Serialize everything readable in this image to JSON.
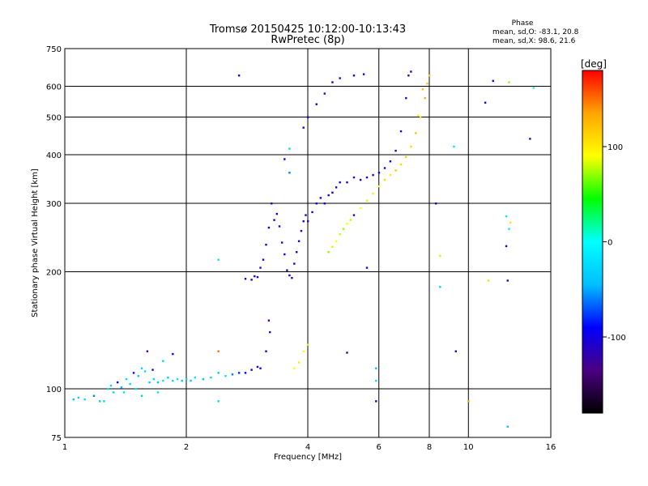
{
  "title_line1": "Tromsø 20150425 10:12:00-10:13:43",
  "title_line2": "RwPretec (8p)",
  "phase_box": {
    "heading": "Phase",
    "line_o": "mean, sd,O: -83.1, 20.8",
    "line_x": "mean, sd,X:  98.6, 21.6"
  },
  "colorbar": {
    "unit": "[deg]",
    "tick_labels": [
      "100",
      "0",
      "-100"
    ],
    "tick_values": [
      100,
      0,
      -100
    ],
    "range": [
      -180,
      180
    ],
    "colormap": [
      "#000000",
      "#4b0082",
      "#0000ff",
      "#00bfff",
      "#00ffff",
      "#00ff00",
      "#ffff00",
      "#ffa500",
      "#ff0000"
    ]
  },
  "chart_data": {
    "type": "scatter",
    "title": "Tromsø 20150425 10:12:00-10:13:43",
    "subtitle": "RwPretec (8p)",
    "xlabel": "Frequency [MHz]",
    "ylabel": "Stationary phase Virtual Height [km]",
    "x_scale": "log2",
    "y_scale": "log",
    "xlim": [
      1,
      16
    ],
    "ylim": [
      75,
      750
    ],
    "x_ticks": [
      1,
      2,
      4,
      6,
      8,
      10,
      16
    ],
    "x_tick_labels": [
      "1",
      "2",
      "4",
      "6",
      "8",
      "10",
      "16"
    ],
    "y_ticks": [
      75,
      100,
      200,
      300,
      400,
      500,
      600,
      750
    ],
    "y_tick_labels": [
      "75",
      "100",
      "200",
      "300",
      "400",
      "500",
      "600",
      "750"
    ],
    "grid": true,
    "color_encoding": "phase [deg]",
    "series": [
      {
        "points": [
          [
            1.05,
            94,
            -40
          ],
          [
            1.08,
            95,
            -30
          ],
          [
            1.12,
            94,
            -20
          ],
          [
            1.18,
            96,
            -60
          ],
          [
            1.22,
            93,
            -40
          ],
          [
            1.28,
            100,
            -20
          ],
          [
            1.32,
            98,
            -30
          ],
          [
            1.35,
            104,
            -100
          ],
          [
            1.38,
            101,
            -40
          ],
          [
            1.42,
            106,
            -20
          ],
          [
            1.45,
            103,
            -30
          ],
          [
            1.48,
            110,
            -100
          ],
          [
            1.52,
            108,
            -40
          ],
          [
            1.55,
            113,
            -30
          ],
          [
            1.58,
            111,
            -20
          ],
          [
            1.62,
            104,
            -40
          ],
          [
            1.66,
            106,
            -30
          ],
          [
            1.7,
            104,
            -40
          ],
          [
            1.75,
            105,
            -20
          ],
          [
            1.8,
            107,
            -40
          ],
          [
            1.85,
            105,
            -30
          ],
          [
            1.9,
            106,
            -20
          ],
          [
            1.95,
            105,
            -40
          ],
          [
            2.0,
            106,
            -30
          ],
          [
            2.05,
            105,
            -40
          ],
          [
            2.1,
            107,
            -20
          ],
          [
            2.2,
            106,
            -40
          ],
          [
            2.3,
            107,
            -30
          ],
          [
            2.4,
            110,
            -40
          ],
          [
            2.5,
            108,
            -20
          ],
          [
            2.6,
            109,
            -60
          ],
          [
            2.7,
            110,
            -80
          ],
          [
            2.8,
            110,
            -90
          ],
          [
            2.9,
            112,
            -100
          ],
          [
            3.0,
            114,
            -110
          ],
          [
            3.05,
            113,
            -100
          ],
          [
            3.15,
            125,
            -110
          ],
          [
            3.2,
            150,
            -120
          ],
          [
            3.22,
            140,
            -110
          ],
          [
            1.25,
            93,
            -30
          ],
          [
            1.4,
            98,
            -20
          ],
          [
            1.55,
            96,
            -40
          ],
          [
            1.6,
            125,
            -120
          ],
          [
            1.75,
            118,
            -30
          ],
          [
            1.5,
            100,
            -20
          ],
          [
            1.65,
            112,
            -100
          ],
          [
            1.3,
            102,
            -30
          ],
          [
            1.7,
            98,
            -20
          ],
          [
            1.85,
            123,
            -100
          ]
        ]
      },
      {
        "points": [
          [
            2.8,
            192,
            -110
          ],
          [
            2.9,
            191,
            -100
          ],
          [
            2.95,
            195,
            -110
          ],
          [
            3.0,
            194,
            -100
          ],
          [
            3.05,
            205,
            -110
          ],
          [
            3.1,
            215,
            -100
          ],
          [
            3.15,
            235,
            -110
          ],
          [
            3.2,
            260,
            -100
          ],
          [
            3.25,
            300,
            -110
          ],
          [
            3.3,
            272,
            -100
          ],
          [
            3.35,
            282,
            -110
          ],
          [
            3.4,
            262,
            -100
          ],
          [
            3.45,
            238,
            -110
          ],
          [
            3.5,
            222,
            -100
          ],
          [
            3.55,
            202,
            -110
          ],
          [
            3.6,
            196,
            -100
          ],
          [
            3.65,
            193,
            -110
          ],
          [
            3.7,
            210,
            -100
          ],
          [
            3.75,
            225,
            -110
          ],
          [
            3.8,
            240,
            -100
          ],
          [
            3.85,
            255,
            -110
          ],
          [
            3.9,
            270,
            -100
          ],
          [
            3.95,
            280,
            -110
          ],
          [
            4.0,
            270,
            -120
          ],
          [
            4.1,
            285,
            -110
          ],
          [
            4.2,
            300,
            -100
          ],
          [
            4.3,
            310,
            -110
          ],
          [
            4.4,
            300,
            -100
          ],
          [
            4.5,
            315,
            -110
          ],
          [
            4.6,
            320,
            -100
          ],
          [
            4.7,
            330,
            -110
          ],
          [
            4.8,
            340,
            -100
          ],
          [
            5.0,
            340,
            -110
          ],
          [
            5.2,
            350,
            -100
          ],
          [
            5.4,
            345,
            -110
          ],
          [
            5.6,
            350,
            -100
          ],
          [
            5.8,
            355,
            -110
          ],
          [
            6.0,
            360,
            -100
          ],
          [
            6.2,
            370,
            -110
          ],
          [
            6.4,
            385,
            -100
          ],
          [
            6.6,
            410,
            -110
          ],
          [
            6.8,
            460,
            -100
          ],
          [
            7.0,
            560,
            -110
          ],
          [
            7.1,
            640,
            -120
          ],
          [
            7.2,
            655,
            -110
          ],
          [
            3.5,
            390,
            -90
          ],
          [
            3.6,
            360,
            -60
          ],
          [
            3.9,
            470,
            -100
          ],
          [
            4.0,
            500,
            -110
          ],
          [
            4.2,
            540,
            -100
          ],
          [
            4.4,
            575,
            -110
          ],
          [
            4.6,
            615,
            -100
          ],
          [
            4.8,
            630,
            -110
          ],
          [
            5.2,
            640,
            -100
          ],
          [
            5.5,
            645,
            -110
          ],
          [
            3.6,
            415,
            -30
          ],
          [
            2.7,
            640,
            -100
          ]
        ]
      },
      {
        "points": [
          [
            4.5,
            225,
            70
          ],
          [
            4.6,
            232,
            80
          ],
          [
            4.7,
            240,
            90
          ],
          [
            4.8,
            250,
            80
          ],
          [
            4.9,
            258,
            70
          ],
          [
            5.0,
            266,
            90
          ],
          [
            5.1,
            272,
            80
          ],
          [
            5.2,
            280,
            100
          ],
          [
            5.4,
            292,
            90
          ],
          [
            5.6,
            305,
            80
          ],
          [
            5.8,
            318,
            100
          ],
          [
            6.0,
            332,
            90
          ],
          [
            6.2,
            345,
            110
          ],
          [
            6.4,
            355,
            100
          ],
          [
            6.6,
            365,
            120
          ],
          [
            6.8,
            378,
            110
          ],
          [
            7.0,
            395,
            120
          ],
          [
            7.2,
            420,
            110
          ],
          [
            7.4,
            455,
            120
          ],
          [
            7.6,
            500,
            110
          ],
          [
            7.8,
            560,
            130
          ],
          [
            7.9,
            610,
            120
          ],
          [
            8.0,
            640,
            110
          ],
          [
            3.7,
            113,
            90
          ],
          [
            3.8,
            117,
            100
          ],
          [
            3.9,
            125,
            90
          ],
          [
            4.0,
            130,
            80
          ],
          [
            7.5,
            505,
            100
          ],
          [
            7.7,
            590,
            120
          ]
        ]
      },
      {
        "points": [
          [
            2.4,
            125,
            150
          ],
          [
            2.4,
            93,
            -30
          ],
          [
            2.4,
            215,
            -20
          ],
          [
            5.0,
            124,
            -110
          ],
          [
            5.2,
            280,
            -120
          ],
          [
            5.6,
            205,
            -110
          ],
          [
            5.9,
            93,
            -100
          ],
          [
            5.9,
            105,
            -30
          ],
          [
            5.9,
            113,
            -40
          ],
          [
            8.3,
            300,
            -100
          ],
          [
            8.5,
            220,
            80
          ],
          [
            8.5,
            183,
            -30
          ],
          [
            9.2,
            420,
            -20
          ],
          [
            9.3,
            125,
            -110
          ],
          [
            10.0,
            93,
            130
          ],
          [
            11.0,
            545,
            -100
          ],
          [
            11.2,
            190,
            80
          ],
          [
            11.5,
            620,
            -100
          ],
          [
            12.4,
            278,
            -20
          ],
          [
            12.5,
            190,
            -110
          ],
          [
            12.4,
            233,
            -110
          ],
          [
            12.5,
            80,
            -40
          ],
          [
            12.6,
            258,
            -20
          ],
          [
            12.7,
            268,
            100
          ],
          [
            12.6,
            615,
            70
          ],
          [
            14.2,
            440,
            -120
          ],
          [
            14.5,
            595,
            10
          ]
        ]
      }
    ]
  }
}
